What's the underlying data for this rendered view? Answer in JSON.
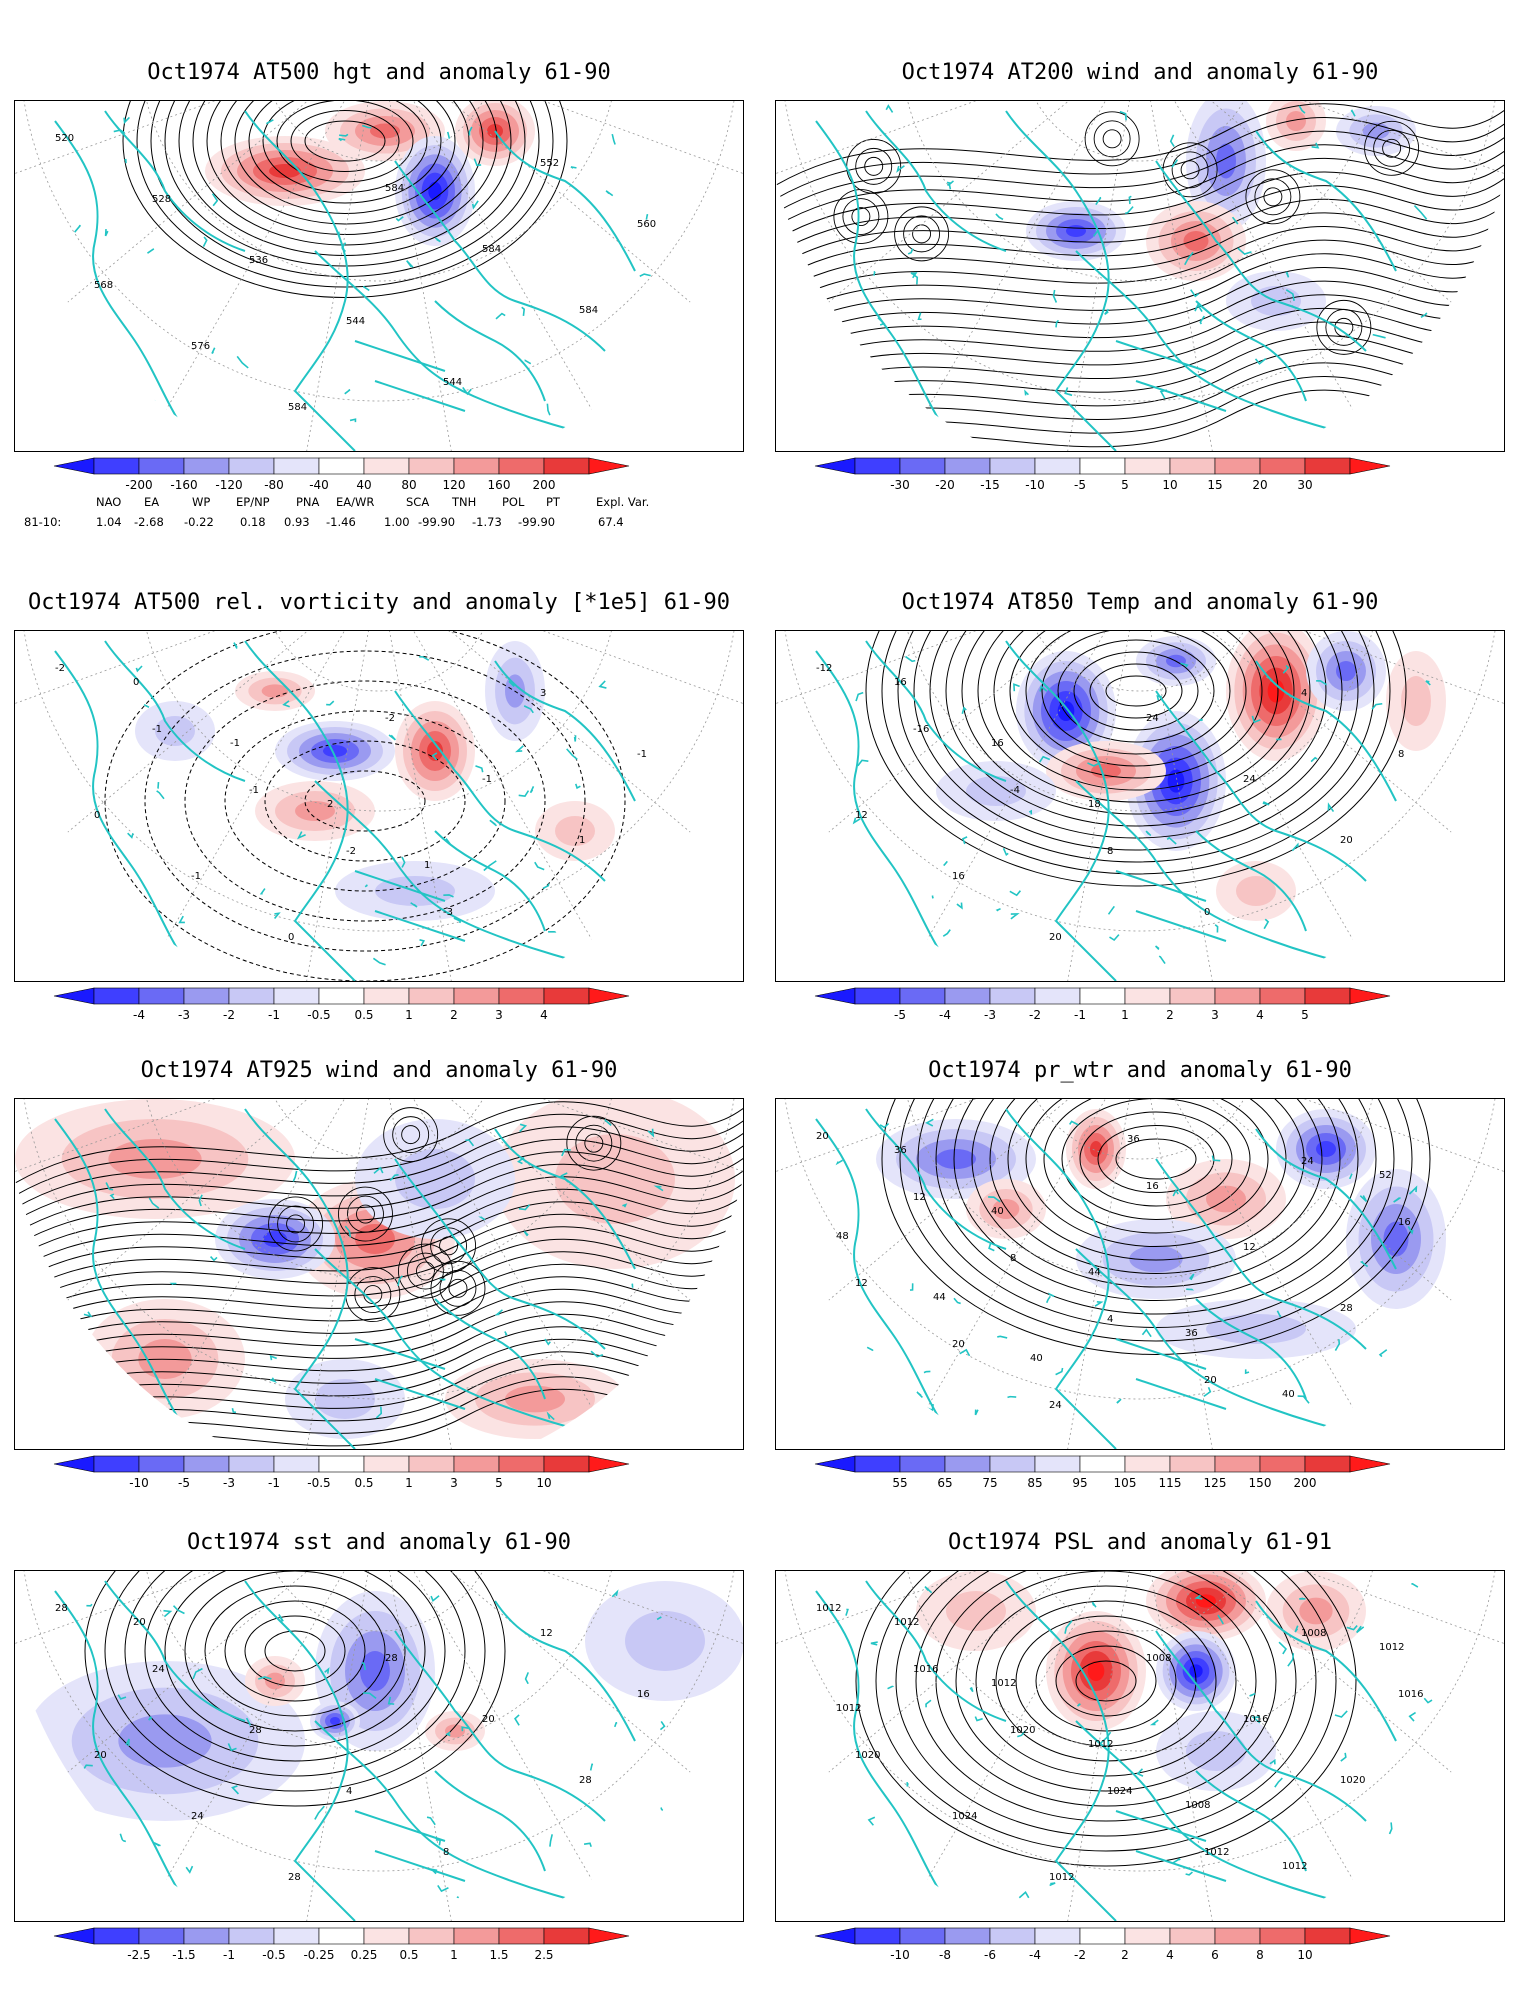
{
  "panels": [
    {
      "id": "p1",
      "title": "Oct1974 AT500 hgt and anomaly 61-90",
      "style": "hgt",
      "labels": [
        "520",
        "528",
        "536",
        "544",
        "544",
        "552",
        "560",
        "568",
        "576",
        "584",
        "584",
        "584",
        "584"
      ],
      "colorbar": {
        "ticks": [
          "-200",
          "-160",
          "-120",
          "-80",
          "-40",
          "40",
          "80",
          "120",
          "160",
          "200"
        ]
      }
    },
    {
      "id": "p2",
      "title": "Oct1974 AT200 wind and anomaly 61-90",
      "style": "wind",
      "labels": [],
      "colorbar": {
        "ticks": [
          "-30",
          "-20",
          "-15",
          "-10",
          "-5",
          "5",
          "10",
          "15",
          "20",
          "30"
        ]
      }
    },
    {
      "id": "p3",
      "title": "Oct1974 AT500 rel. vorticity and anomaly [*1e5] 61-90",
      "style": "vort",
      "labels": [
        "-2",
        "-1",
        "-1",
        "-2",
        "-3",
        "3",
        "-1",
        "0",
        "-1",
        "0",
        "-2",
        "-1",
        "1",
        "0",
        "0",
        "-1",
        "2",
        "1"
      ],
      "colorbar": {
        "ticks": [
          "-4",
          "-3",
          "-2",
          "-1",
          "-0.5",
          "0.5",
          "1",
          "2",
          "3",
          "4"
        ]
      }
    },
    {
      "id": "p4",
      "title": "Oct1974 AT850 Temp and anomaly 61-90",
      "style": "temp",
      "labels": [
        "-12",
        "-16",
        "-4",
        "8",
        "0",
        "4",
        "8",
        "12",
        "16",
        "20",
        "24",
        "24",
        "20",
        "20",
        "16",
        "16",
        "18"
      ],
      "colorbar": {
        "ticks": [
          "-5",
          "-4",
          "-3",
          "-2",
          "-1",
          "1",
          "2",
          "3",
          "4",
          "5"
        ]
      }
    },
    {
      "id": "p5",
      "title": "Oct1974 AT925 wind and anomaly 61-90",
      "style": "wind2",
      "labels": [],
      "colorbar": {
        "ticks": [
          "-10",
          "-5",
          "-3",
          "-1",
          "-0.5",
          "0.5",
          "1",
          "3",
          "5",
          "10"
        ]
      }
    },
    {
      "id": "p6",
      "title": "Oct1974 pr_wtr and anomaly 61-90",
      "style": "prwtr",
      "labels": [
        "20",
        "12",
        "8",
        "4",
        "20",
        "24",
        "16",
        "12",
        "20",
        "24",
        "16",
        "12",
        "28",
        "32",
        "36",
        "40",
        "44",
        "36",
        "40",
        "52",
        "48",
        "44",
        "40",
        "36"
      ],
      "colorbar": {
        "ticks": [
          "55",
          "65",
          "75",
          "85",
          "95",
          "105",
          "115",
          "125",
          "150",
          "200"
        ]
      }
    },
    {
      "id": "p7",
      "title": "Oct1974 sst and anomaly 61-90",
      "style": "sst",
      "labels": [
        "28",
        "24",
        "28",
        "4",
        "8",
        "12",
        "16",
        "20",
        "24",
        "28",
        "28",
        "20",
        "28",
        "12",
        "20"
      ],
      "colorbar": {
        "ticks": [
          "-2.5",
          "-1.5",
          "-1",
          "-0.5",
          "-0.25",
          "0.25",
          "0.5",
          "1",
          "1.5",
          "2.5"
        ]
      }
    },
    {
      "id": "p8",
      "title": "Oct1974 PSL and anomaly 61-91",
      "style": "psl",
      "labels": [
        "1012",
        "1016",
        "1020",
        "1024",
        "1012",
        "1008",
        "1016",
        "1020",
        "1024",
        "1012",
        "1008",
        "1016",
        "1020",
        "1016",
        "1012",
        "1012",
        "1012",
        "1008",
        "1012",
        "1012",
        "1012"
      ],
      "colorbar": {
        "ticks": [
          "-10",
          "-8",
          "-6",
          "-4",
          "-2",
          "2",
          "4",
          "6",
          "8",
          "10"
        ]
      }
    }
  ],
  "indices": {
    "headers": [
      "NAO",
      "EA",
      "WP",
      "EP/NP",
      "PNA",
      "EA/WR",
      "SCA",
      "TNH",
      "POL",
      "PT",
      "Expl. Var."
    ],
    "row_label": "81-10:",
    "values": [
      "1.04",
      "-2.68",
      "-0.22",
      "0.18",
      "0.93",
      "-1.46",
      "1.00",
      "-99.90",
      "-1.73",
      "-99.90",
      "67.4"
    ]
  },
  "colors": {
    "coast": "#22c4c4",
    "blue_scale": [
      "#1a1aff",
      "#3f3fff",
      "#6a6af5",
      "#9a9af0",
      "#c8c8f5",
      "#e4e4fa"
    ],
    "red_scale": [
      "#fbe3e3",
      "#f7c4c4",
      "#f39a9a",
      "#ee6b6b",
      "#e83a3a",
      "#ff1a1a"
    ]
  }
}
